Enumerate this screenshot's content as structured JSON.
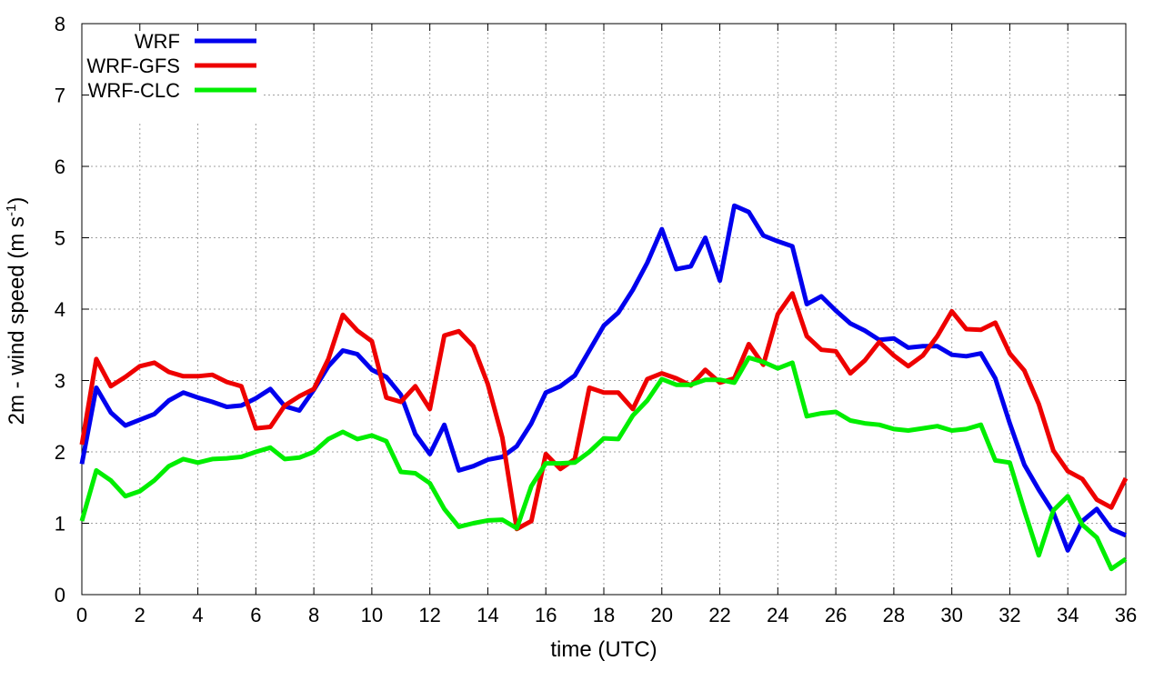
{
  "chart_data": {
    "type": "line",
    "title": "",
    "xlabel": "time (UTC)",
    "ylabel_main": "2m - wind speed  (m s",
    "ylabel_sup": "-1",
    "ylabel_close": ")",
    "xlim": [
      0,
      36
    ],
    "ylim": [
      0,
      8
    ],
    "xticks": [
      0,
      2,
      4,
      6,
      8,
      10,
      12,
      14,
      16,
      18,
      20,
      22,
      24,
      26,
      28,
      30,
      32,
      34,
      36
    ],
    "yticks": [
      0,
      1,
      2,
      3,
      4,
      5,
      6,
      7,
      8
    ],
    "grid": true,
    "legend_position": "top-left",
    "x": [
      0,
      0.5,
      1,
      1.5,
      2,
      2.5,
      3,
      3.5,
      4,
      4.5,
      5,
      5.5,
      6,
      6.5,
      7,
      7.5,
      8,
      8.5,
      9,
      9.5,
      10,
      10.5,
      11,
      11.5,
      12,
      12.5,
      13,
      13.5,
      14,
      14.5,
      15,
      15.5,
      16,
      16.5,
      17,
      17.5,
      18,
      18.5,
      19,
      19.5,
      20,
      20.5,
      21,
      21.5,
      22,
      22.5,
      23,
      23.5,
      24,
      24.5,
      25,
      25.5,
      26,
      26.5,
      27,
      27.5,
      28,
      28.5,
      29,
      29.5,
      30,
      30.5,
      31,
      31.5,
      32,
      32.5,
      33,
      33.5,
      34,
      34.5,
      35,
      35.5,
      36
    ],
    "series": [
      {
        "name": "WRF",
        "color": "#0000ee",
        "values": [
          1.83,
          2.9,
          2.55,
          2.37,
          2.45,
          2.53,
          2.72,
          2.83,
          2.76,
          2.7,
          2.63,
          2.65,
          2.75,
          2.88,
          2.64,
          2.58,
          2.87,
          3.2,
          3.42,
          3.37,
          3.15,
          3.05,
          2.8,
          2.25,
          1.97,
          2.38,
          1.74,
          1.8,
          1.89,
          1.93,
          2.08,
          2.4,
          2.83,
          2.92,
          3.07,
          3.42,
          3.77,
          3.95,
          4.27,
          4.65,
          5.12,
          4.56,
          4.6,
          5.0,
          4.4,
          5.45,
          5.36,
          5.03,
          4.95,
          4.88,
          4.07,
          4.18,
          3.98,
          3.8,
          3.7,
          3.57,
          3.59,
          3.46,
          3.48,
          3.48,
          3.36,
          3.34,
          3.38,
          3.03,
          2.4,
          1.82,
          1.47,
          1.15,
          0.62,
          1.03,
          1.2,
          0.92,
          0.83
        ]
      },
      {
        "name": "WRF-GFS",
        "color": "#ee0000",
        "values": [
          2.1,
          3.3,
          2.92,
          3.05,
          3.2,
          3.25,
          3.12,
          3.06,
          3.06,
          3.08,
          2.98,
          2.92,
          2.33,
          2.35,
          2.65,
          2.78,
          2.88,
          3.3,
          3.92,
          3.7,
          3.55,
          2.76,
          2.7,
          2.92,
          2.6,
          3.63,
          3.69,
          3.48,
          2.95,
          2.2,
          0.92,
          1.03,
          1.97,
          1.76,
          1.9,
          2.9,
          2.83,
          2.83,
          2.6,
          3.02,
          3.1,
          3.03,
          2.93,
          3.15,
          2.97,
          3.03,
          3.51,
          3.22,
          3.93,
          4.22,
          3.62,
          3.43,
          3.41,
          3.1,
          3.28,
          3.54,
          3.35,
          3.2,
          3.35,
          3.62,
          3.97,
          3.72,
          3.71,
          3.81,
          3.38,
          3.14,
          2.67,
          2.02,
          1.73,
          1.62,
          1.33,
          1.22,
          1.63
        ]
      },
      {
        "name": "WRF-CLC",
        "color": "#00ee00",
        "values": [
          1.03,
          1.74,
          1.6,
          1.38,
          1.45,
          1.6,
          1.8,
          1.9,
          1.85,
          1.9,
          1.91,
          1.93,
          2.0,
          2.06,
          1.9,
          1.92,
          2.0,
          2.18,
          2.28,
          2.18,
          2.23,
          2.15,
          1.72,
          1.7,
          1.56,
          1.2,
          0.95,
          1.0,
          1.04,
          1.05,
          0.93,
          1.52,
          1.84,
          1.84,
          1.85,
          2.0,
          2.19,
          2.18,
          2.51,
          2.72,
          3.02,
          2.94,
          2.94,
          3.01,
          3.01,
          2.97,
          3.32,
          3.26,
          3.17,
          3.25,
          2.5,
          2.54,
          2.56,
          2.44,
          2.4,
          2.38,
          2.32,
          2.3,
          2.33,
          2.36,
          2.3,
          2.32,
          2.38,
          1.88,
          1.85,
          1.18,
          0.55,
          1.18,
          1.38,
          0.98,
          0.8,
          0.36,
          0.5
        ]
      }
    ]
  }
}
